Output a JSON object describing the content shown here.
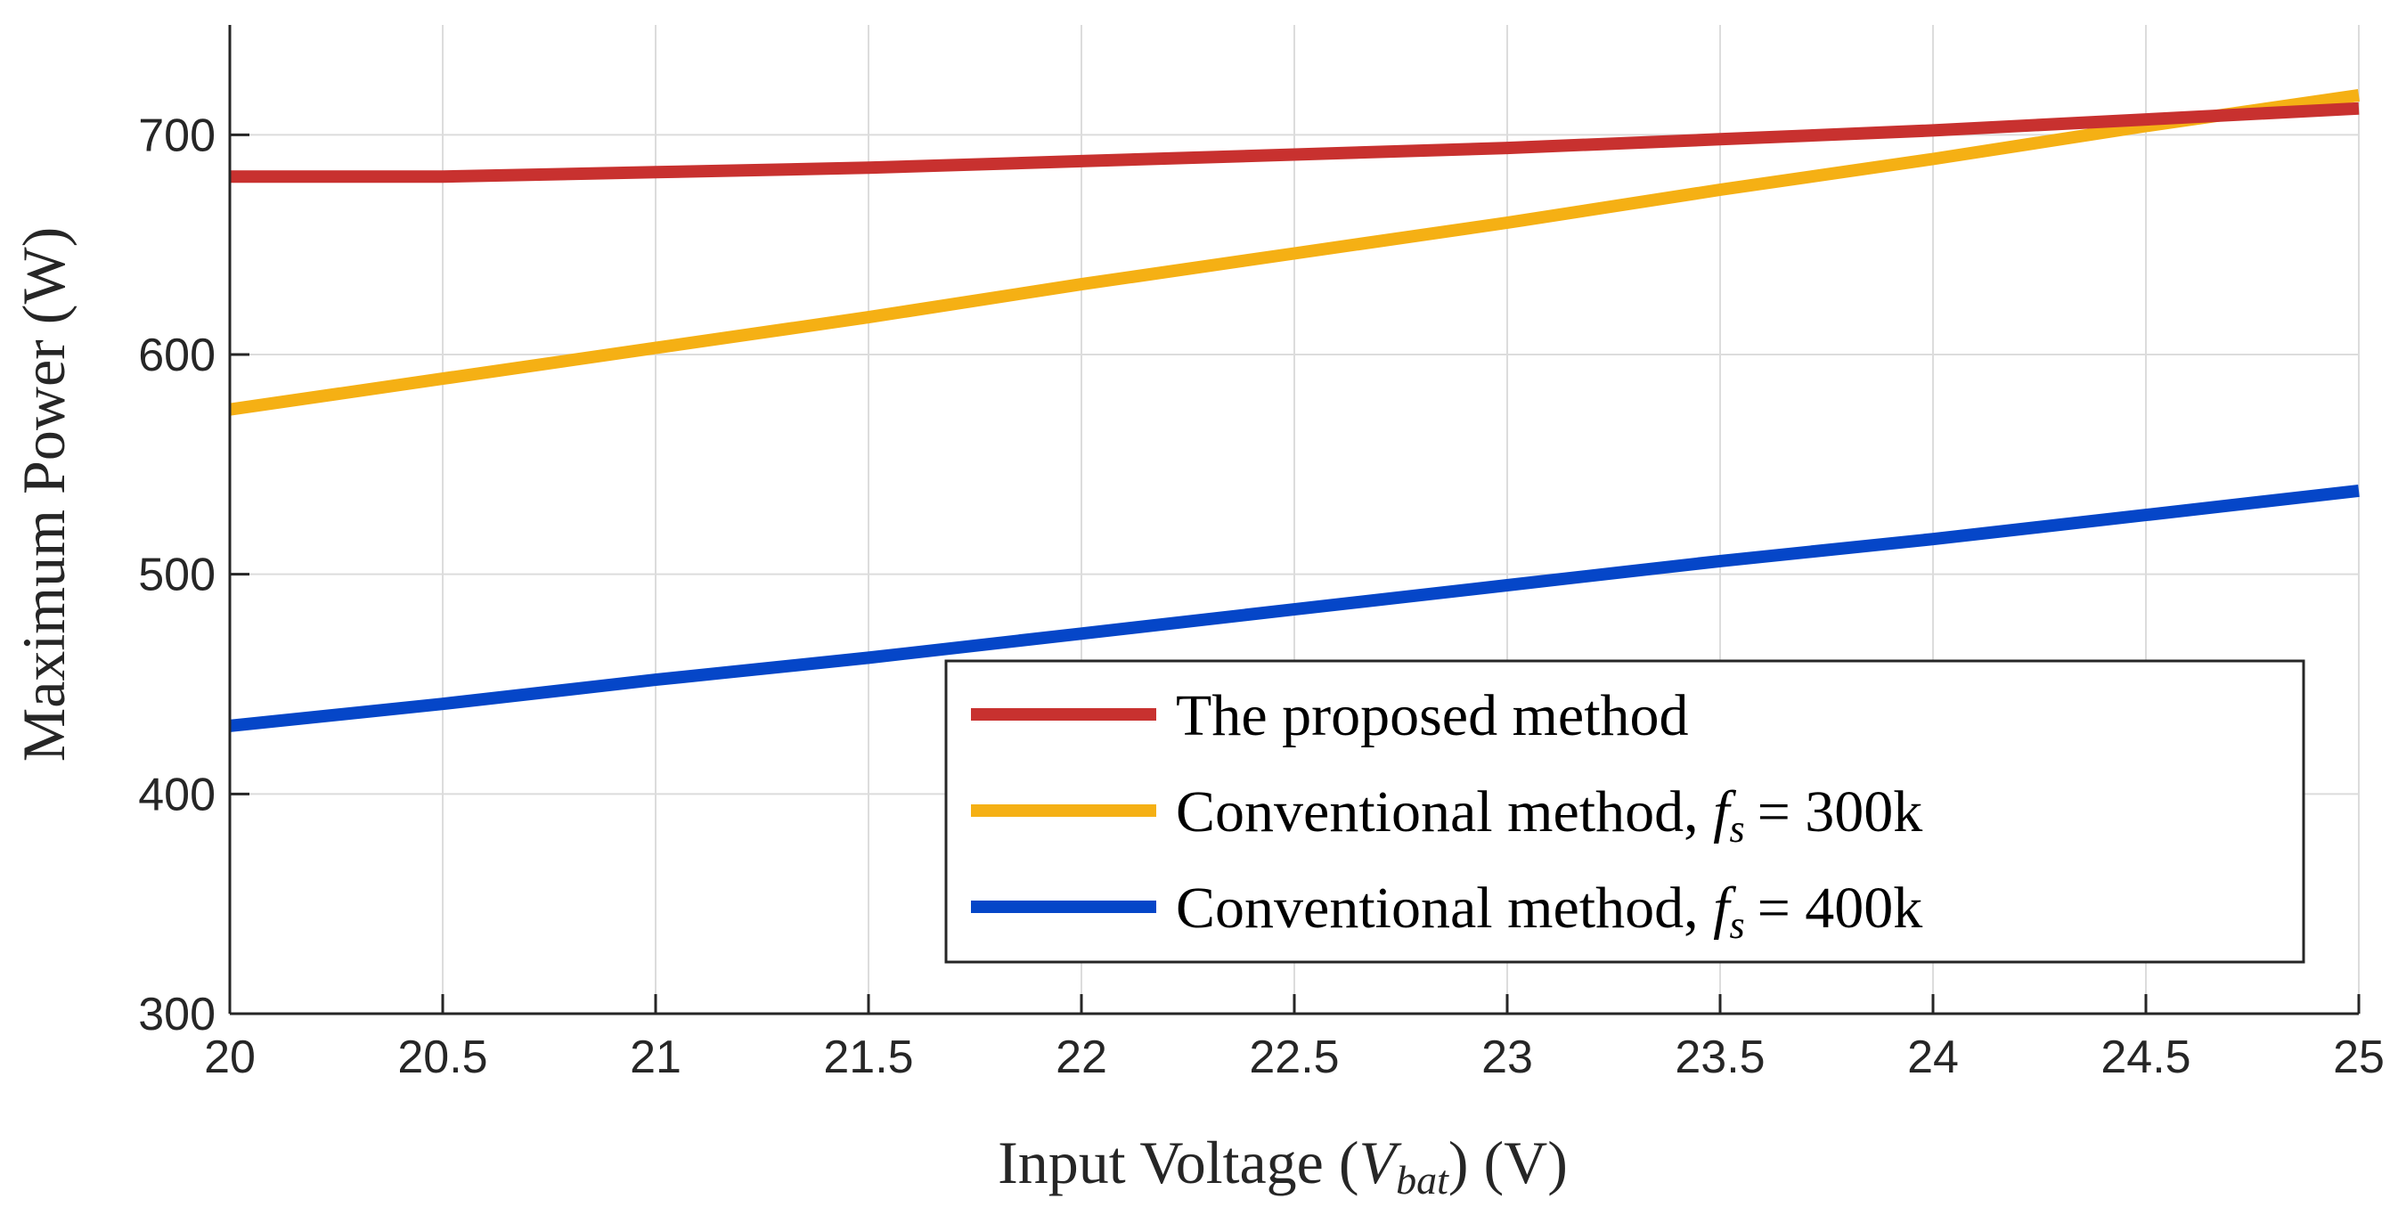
{
  "chart_data": {
    "type": "line",
    "xlabel": "Input Voltage",
    "xlabel_var": "V",
    "xlabel_var_sub": "bat",
    "xlabel_unit": "(V)",
    "ylabel": "Maximum Power (W)",
    "xlim": [
      20,
      25
    ],
    "ylim": [
      300,
      750
    ],
    "x_ticks": [
      "20",
      "20.5",
      "21",
      "21.5",
      "22",
      "22.5",
      "23",
      "23.5",
      "24",
      "24.5",
      "25"
    ],
    "y_ticks": [
      "300",
      "400",
      "500",
      "600",
      "700"
    ],
    "grid": true,
    "legend_position": "bottom-right",
    "x": [
      20,
      20.5,
      21,
      21.5,
      22,
      22.5,
      23,
      23.5,
      24,
      24.5,
      25
    ],
    "series": [
      {
        "name": "The proposed method",
        "color": "#c8312f",
        "values": [
          681,
          681,
          683,
          685,
          688,
          691,
          694,
          698,
          702,
          707,
          712
        ]
      },
      {
        "name": "Conventional method, f_s = 300k",
        "legend_prefix": "Conventional method,",
        "legend_var": "f",
        "legend_sub": "s",
        "legend_suffix": "= 300k",
        "color": "#f5b014",
        "values": [
          575,
          589,
          603,
          617,
          632,
          646,
          660,
          675,
          689,
          704,
          718
        ]
      },
      {
        "name": "Conventional method, f_s = 400k",
        "legend_prefix": "Conventional method,",
        "legend_var": "f",
        "legend_sub": "s",
        "legend_suffix": "= 400k",
        "color": "#0546c8",
        "values": [
          431,
          441,
          452,
          462,
          473,
          484,
          495,
          506,
          516,
          527,
          538
        ]
      }
    ]
  }
}
